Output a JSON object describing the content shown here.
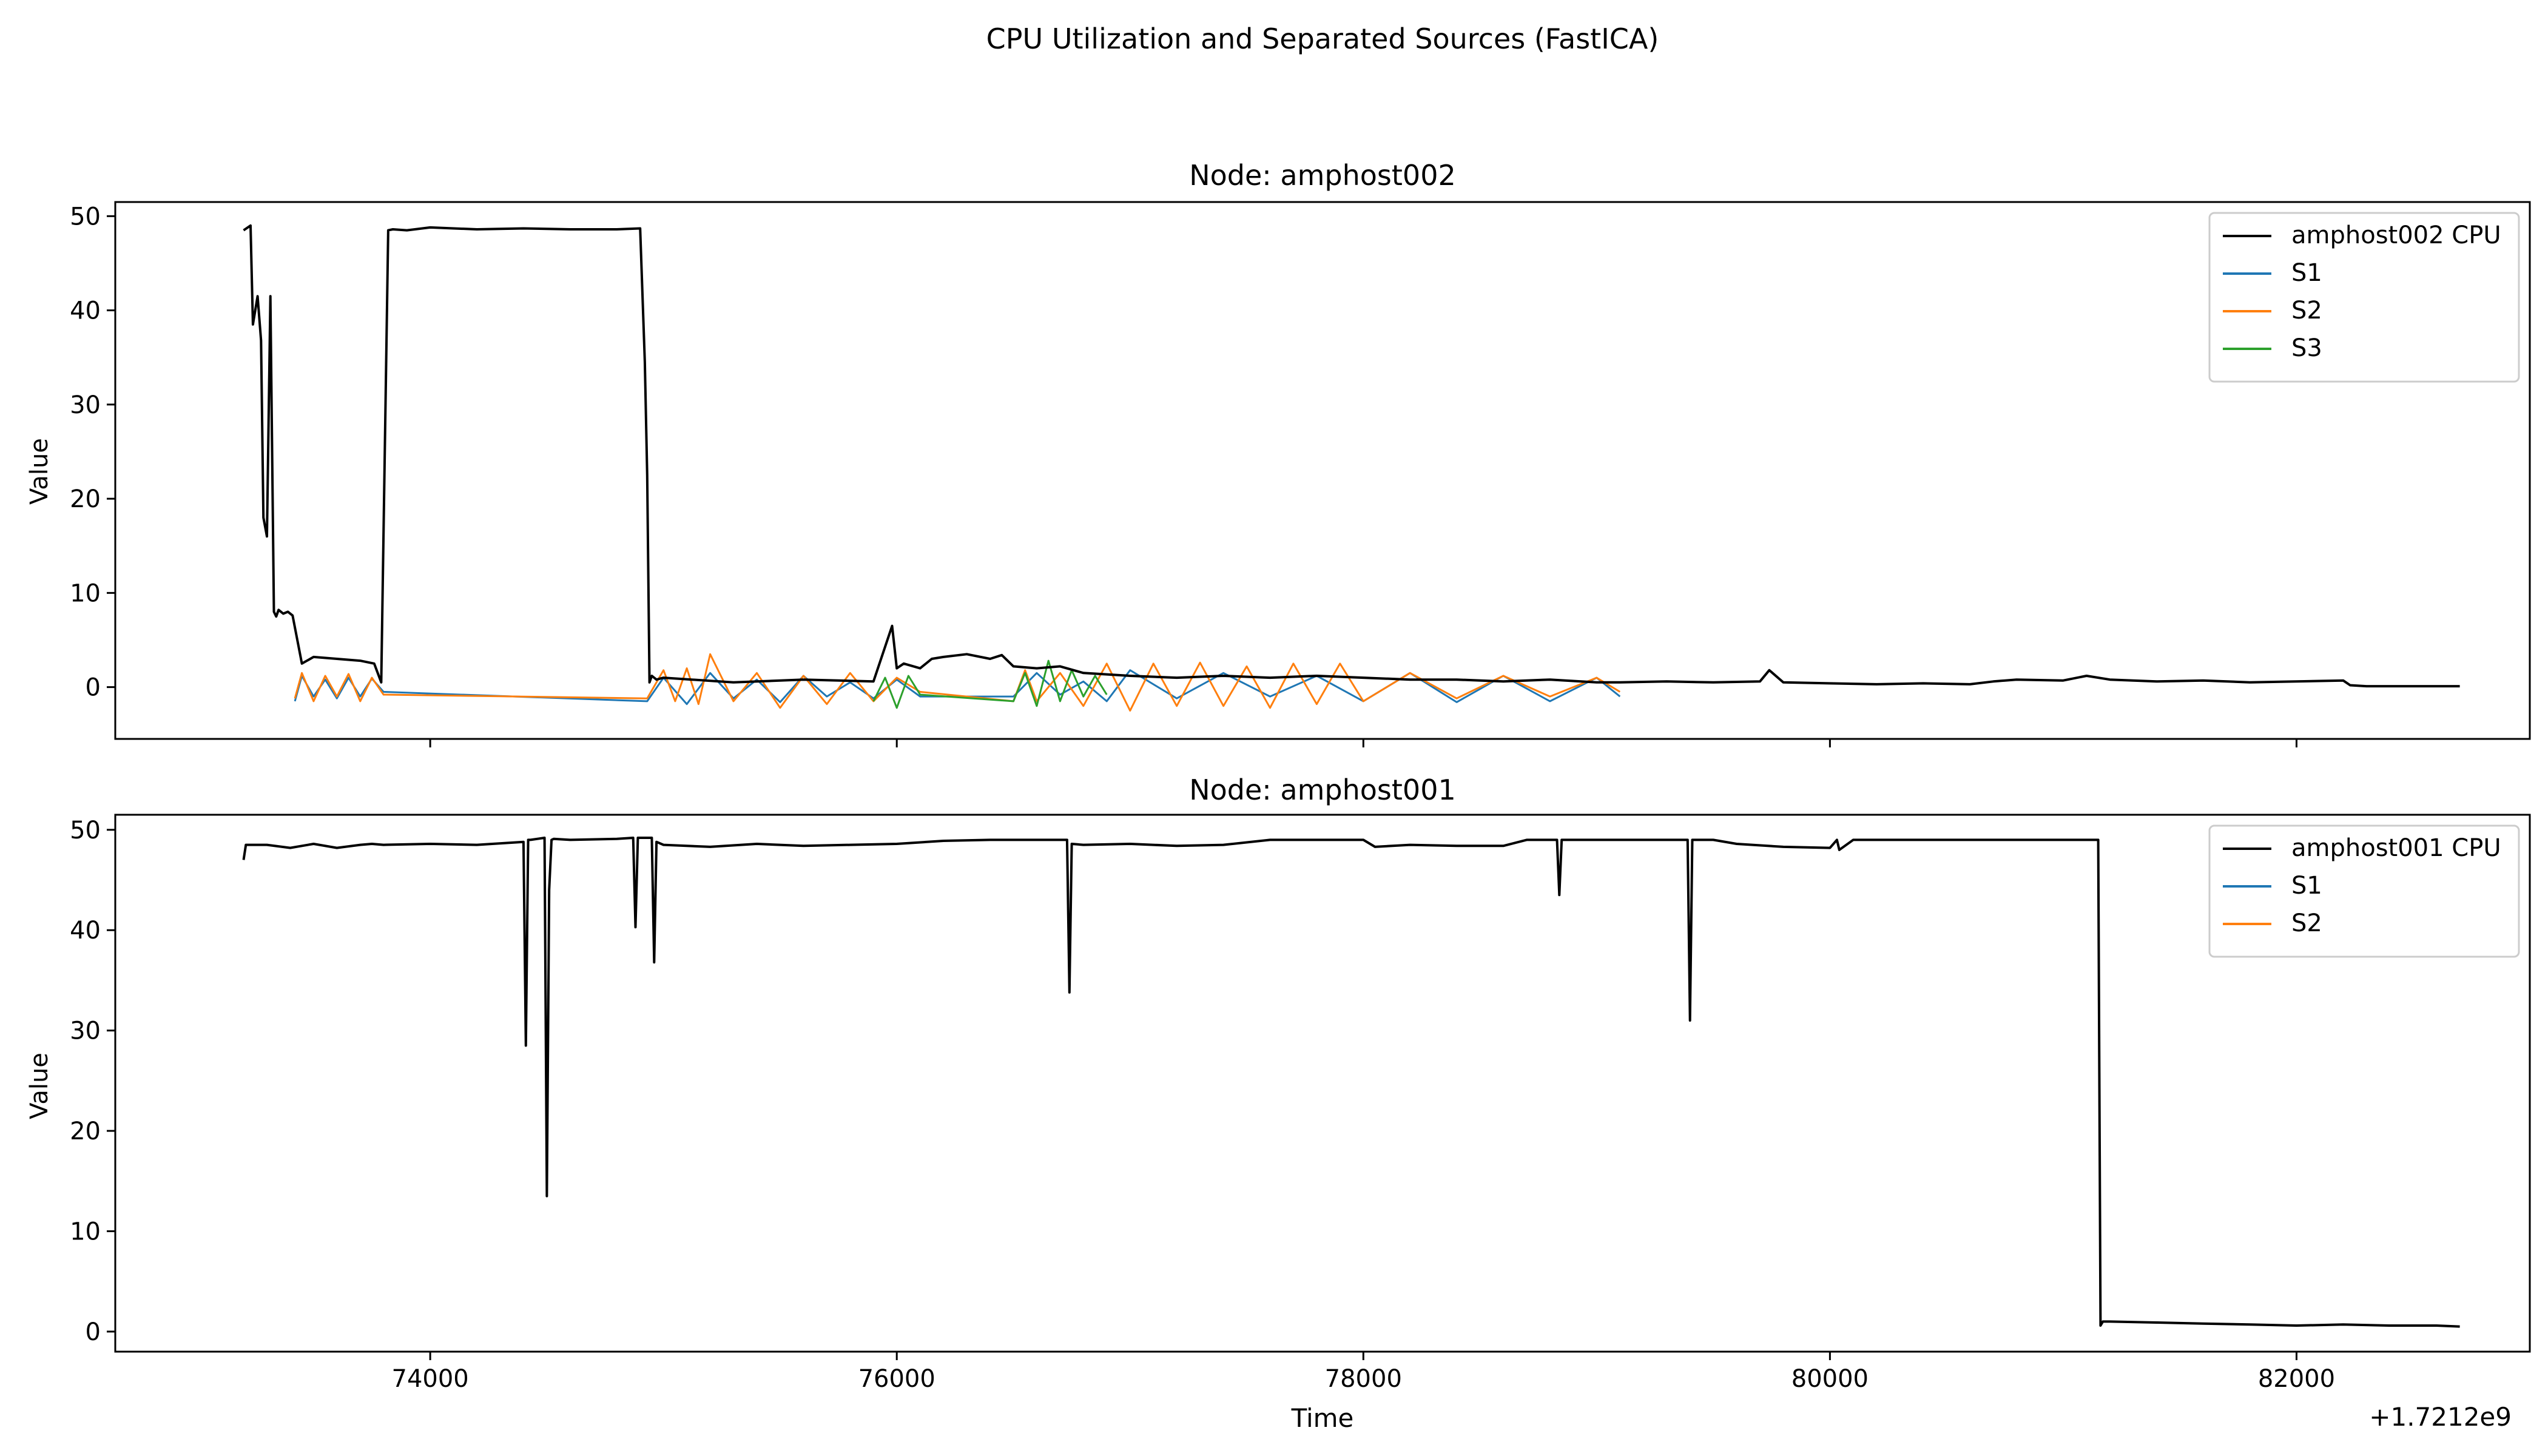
{
  "figure": {
    "title": "CPU Utilization and Separated Sources (FastICA)",
    "x_offset_label": "+1.7212e9"
  },
  "chart_data": [
    {
      "type": "line",
      "title": "Node: amphost002",
      "xlabel": "",
      "ylabel": "Value",
      "xlim": [
        72650,
        83000
      ],
      "ylim": [
        -5.5,
        51.5
      ],
      "xticks": [
        74000,
        76000,
        78000,
        80000,
        82000
      ],
      "xticklabels": [
        "",
        "",
        "",
        "",
        ""
      ],
      "yticks": [
        0,
        10,
        20,
        30,
        40,
        50
      ],
      "yticklabels": [
        "0",
        "10",
        "20",
        "30",
        "40",
        "50"
      ],
      "legend": "top-right",
      "series": [
        {
          "name": "amphost002 CPU",
          "color": "#000000",
          "x": [
            73200,
            73230,
            73240,
            73260,
            73275,
            73285,
            73300,
            73315,
            73330,
            73340,
            73350,
            73370,
            73390,
            73410,
            73450,
            73500,
            73600,
            73700,
            73760,
            73790,
            73820,
            73840,
            73900,
            74000,
            74200,
            74400,
            74600,
            74800,
            74900,
            74920,
            74930,
            74940,
            74950,
            74970,
            75000,
            75300,
            75600,
            75900,
            75980,
            76000,
            76030,
            76100,
            76150,
            76200,
            76300,
            76400,
            76450,
            76500,
            76600,
            76700,
            76800,
            77000,
            77200,
            77400,
            77600,
            77800,
            78000,
            78200,
            78400,
            78600,
            78800,
            79000,
            79100,
            79300,
            79500,
            79700,
            79740,
            79800,
            80000,
            80200,
            80400,
            80600,
            80700,
            80800,
            81000,
            81100,
            81200,
            81400,
            81600,
            81800,
            82000,
            82200,
            82230,
            82300,
            82700
          ],
          "y": [
            48.5,
            49,
            38.5,
            41.5,
            36.8,
            18,
            16,
            41.5,
            8.0,
            7.5,
            8.2,
            7.8,
            8.0,
            7.6,
            2.5,
            3.2,
            3.0,
            2.8,
            2.5,
            0.5,
            48.5,
            48.6,
            48.5,
            48.8,
            48.6,
            48.7,
            48.6,
            48.6,
            48.7,
            34.5,
            22.5,
            0.5,
            1.2,
            0.8,
            1.0,
            0.5,
            0.8,
            0.6,
            6.5,
            2.0,
            2.5,
            2.0,
            3.0,
            3.2,
            3.5,
            3.0,
            3.4,
            2.2,
            2.0,
            2.2,
            1.5,
            1.2,
            1.0,
            1.2,
            1.0,
            1.2,
            1.0,
            0.8,
            0.8,
            0.6,
            0.8,
            0.5,
            0.5,
            0.6,
            0.5,
            0.6,
            1.8,
            0.5,
            0.4,
            0.3,
            0.4,
            0.3,
            0.6,
            0.8,
            0.7,
            1.2,
            0.8,
            0.6,
            0.7,
            0.5,
            0.6,
            0.7,
            0.2,
            0.1,
            0.1
          ]
        },
        {
          "name": "S1",
          "color": "#1f77b4",
          "x": [
            73420,
            73450,
            73500,
            73550,
            73600,
            73650,
            73700,
            73750,
            73800,
            74930,
            75000,
            75100,
            75200,
            75300,
            75400,
            75500,
            75600,
            75700,
            75800,
            75900,
            76000,
            76100,
            76500,
            76600,
            76700,
            76800,
            76900,
            77000,
            77200,
            77400,
            77600,
            77800,
            78000,
            78200,
            78400,
            78600,
            78800,
            79000,
            79100
          ],
          "y": [
            -1.5,
            1.2,
            -1.0,
            0.8,
            -1.2,
            1.0,
            -1.0,
            0.9,
            -0.5,
            -1.5,
            1.0,
            -1.8,
            1.5,
            -1.2,
            0.8,
            -1.6,
            1.2,
            -1.0,
            0.5,
            -1.2,
            0.8,
            -1.0,
            -1.0,
            1.5,
            -0.8,
            0.6,
            -1.5,
            1.8,
            -1.2,
            1.5,
            -1.0,
            1.2,
            -1.5,
            1.5,
            -1.6,
            1.2,
            -1.5,
            1.0,
            -1.0
          ]
        },
        {
          "name": "S2",
          "color": "#ff7f0e",
          "x": [
            73420,
            73450,
            73500,
            73550,
            73600,
            73650,
            73700,
            73750,
            73800,
            74930,
            75000,
            75050,
            75100,
            75150,
            75200,
            75300,
            75400,
            75500,
            75600,
            75700,
            75800,
            75900,
            76000,
            76100,
            76500,
            76550,
            76600,
            76700,
            76800,
            76900,
            77000,
            77100,
            77200,
            77300,
            77400,
            77500,
            77600,
            77700,
            77800,
            77900,
            78000,
            78200,
            78400,
            78600,
            78800,
            79000,
            79100
          ],
          "y": [
            -1.2,
            1.5,
            -1.5,
            1.2,
            -1.0,
            1.4,
            -1.5,
            1.0,
            -0.8,
            -1.2,
            1.8,
            -1.5,
            2.0,
            -1.8,
            3.5,
            -1.5,
            1.5,
            -2.2,
            1.2,
            -1.8,
            1.5,
            -1.5,
            1.0,
            -0.5,
            -1.5,
            1.8,
            -1.5,
            1.5,
            -2.0,
            2.5,
            -2.5,
            2.5,
            -2.0,
            2.6,
            -2.0,
            2.2,
            -2.2,
            2.5,
            -1.8,
            2.5,
            -1.5,
            1.5,
            -1.2,
            1.2,
            -1.0,
            1.0,
            -0.5
          ]
        },
        {
          "name": "S3",
          "color": "#2ca02c",
          "x": [
            75900,
            75950,
            76000,
            76050,
            76100,
            76500,
            76550,
            76600,
            76650,
            76700,
            76750,
            76800,
            76850,
            76900
          ],
          "y": [
            -1.5,
            1.0,
            -2.2,
            1.2,
            -0.8,
            -1.5,
            1.5,
            -2.0,
            2.8,
            -1.5,
            1.8,
            -1.0,
            1.2,
            -0.8
          ]
        }
      ]
    },
    {
      "type": "line",
      "title": "Node: amphost001",
      "xlabel": "Time",
      "ylabel": "Value",
      "xlim": [
        72650,
        83000
      ],
      "ylim": [
        -2,
        51.5
      ],
      "xticks": [
        74000,
        76000,
        78000,
        80000,
        82000
      ],
      "xticklabels": [
        "74000",
        "76000",
        "78000",
        "80000",
        "82000"
      ],
      "yticks": [
        0,
        10,
        20,
        30,
        40,
        50
      ],
      "yticklabels": [
        "0",
        "10",
        "20",
        "30",
        "40",
        "50"
      ],
      "legend": "top-right",
      "series": [
        {
          "name": "amphost001 CPU",
          "color": "#000000",
          "x": [
            73200,
            73210,
            73300,
            73400,
            73500,
            73600,
            73700,
            73750,
            73800,
            74000,
            74200,
            74400,
            74410,
            74420,
            74430,
            74490,
            74500,
            74510,
            74520,
            74530,
            74600,
            74800,
            74870,
            74880,
            74890,
            74950,
            74960,
            74970,
            75000,
            75200,
            75400,
            75600,
            75800,
            76000,
            76200,
            76400,
            76600,
            76730,
            76740,
            76750,
            76800,
            77000,
            77200,
            77400,
            77600,
            77800,
            78000,
            78050,
            78200,
            78400,
            78600,
            78700,
            78830,
            78840,
            78850,
            79000,
            79200,
            79390,
            79400,
            79410,
            79500,
            79600,
            79800,
            80000,
            80030,
            80040,
            80100,
            80300,
            80500,
            80700,
            80900,
            81100,
            81150,
            81160,
            81170,
            81200,
            81400,
            81600,
            81800,
            82000,
            82200,
            82400,
            82600,
            82700
          ],
          "y": [
            47,
            48.5,
            48.5,
            48.2,
            48.6,
            48.2,
            48.5,
            48.6,
            48.5,
            48.6,
            48.5,
            48.8,
            28.5,
            49,
            49,
            49.2,
            13.5,
            44,
            49,
            49.1,
            49,
            49.1,
            49.2,
            40.3,
            49.2,
            49.2,
            36.8,
            48.8,
            48.5,
            48.3,
            48.6,
            48.4,
            48.5,
            48.6,
            48.9,
            49,
            49,
            49,
            33.8,
            48.6,
            48.5,
            48.6,
            48.4,
            48.5,
            49,
            49,
            49,
            48.3,
            48.5,
            48.4,
            48.4,
            49,
            49,
            43.5,
            49,
            49,
            49,
            49,
            31,
            49,
            49,
            48.6,
            48.3,
            48.2,
            49,
            48,
            49,
            49,
            49,
            49,
            49,
            49,
            49,
            0.6,
            1.0,
            1.0,
            0.9,
            0.8,
            0.7,
            0.6,
            0.7,
            0.6,
            0.6,
            0.5
          ]
        },
        {
          "name": "S1",
          "color": "#1f77b4",
          "x": [],
          "y": []
        },
        {
          "name": "S2",
          "color": "#ff7f0e",
          "x": [],
          "y": []
        }
      ]
    }
  ]
}
